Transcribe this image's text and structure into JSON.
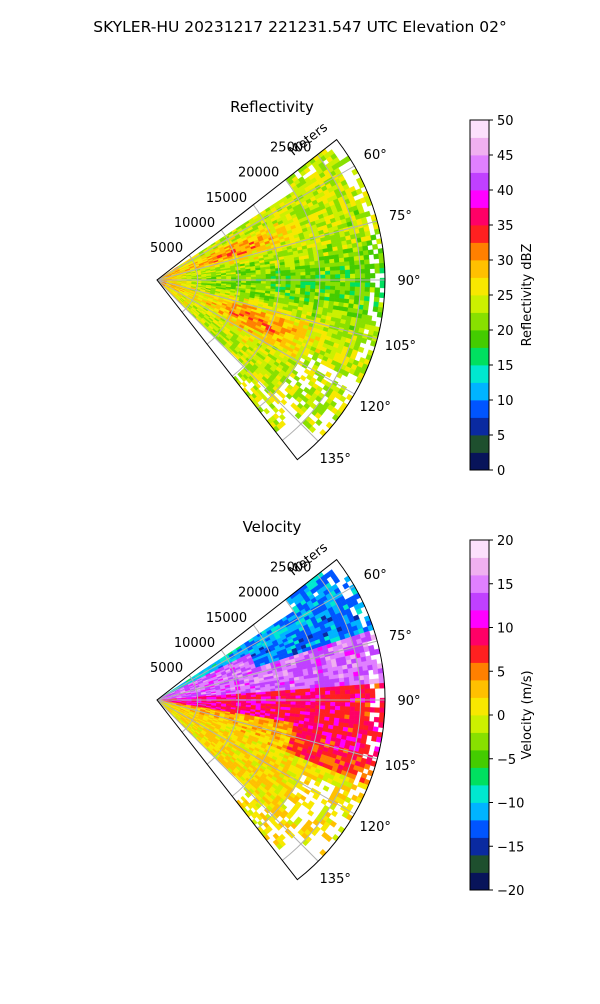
{
  "figure": {
    "suptitle": "SKYLER-HU  20231217  221231.547 UTC Elevation 02°"
  },
  "chart_data": [
    {
      "type": "heatmap",
      "title": "Reflectivity",
      "radial_label": "Meters",
      "radial_ticks": [
        "5000",
        "10000",
        "15000",
        "20000",
        "25000"
      ],
      "radial_tick_values": [
        5000,
        10000,
        15000,
        20000,
        25000
      ],
      "r_max": 28000,
      "angle_range_deg": [
        52,
        142
      ],
      "angle_ticks": [
        "60°",
        "75°",
        "90°",
        "105°",
        "120°",
        "135°"
      ],
      "angle_tick_values": [
        60,
        75,
        90,
        105,
        120,
        135
      ],
      "grid": true,
      "colorbar": {
        "label": "Reflectivity dBZ",
        "range": [
          0,
          50
        ],
        "ticks": [
          "0",
          "5",
          "10",
          "15",
          "20",
          "25",
          "30",
          "35",
          "40",
          "45",
          "50"
        ],
        "tick_values": [
          0,
          5,
          10,
          15,
          20,
          25,
          30,
          35,
          40,
          45,
          50
        ],
        "colors": [
          "#08145a",
          "#1e4f2e",
          "#0a2aa0",
          "#0055ff",
          "#00b4ff",
          "#00e8d0",
          "#00e060",
          "#44cc00",
          "#88e000",
          "#ccf000",
          "#f8e800",
          "#ffc000",
          "#ff8000",
          "#ff2020",
          "#ff0066",
          "#ff00ff",
          "#c040ff",
          "#e080ff",
          "#f0b0f0",
          "#fce0fc"
        ]
      }
    },
    {
      "type": "heatmap",
      "title": "Velocity",
      "radial_label": "Meters",
      "radial_ticks": [
        "5000",
        "10000",
        "15000",
        "20000",
        "25000"
      ],
      "radial_tick_values": [
        5000,
        10000,
        15000,
        20000,
        25000
      ],
      "r_max": 28000,
      "angle_range_deg": [
        52,
        142
      ],
      "angle_ticks": [
        "60°",
        "75°",
        "90°",
        "105°",
        "120°",
        "135°"
      ],
      "angle_tick_values": [
        60,
        75,
        90,
        105,
        120,
        135
      ],
      "grid": true,
      "colorbar": {
        "label": "Velocity (m/s)",
        "range": [
          -20,
          20
        ],
        "ticks": [
          "−20",
          "−15",
          "−10",
          "−5",
          "0",
          "5",
          "10",
          "15",
          "20"
        ],
        "tick_values": [
          -20,
          -15,
          -10,
          -5,
          0,
          5,
          10,
          15,
          20
        ],
        "colors": [
          "#08145a",
          "#1e4f2e",
          "#0a2aa0",
          "#0055ff",
          "#00b4ff",
          "#00e8d0",
          "#00e060",
          "#44cc00",
          "#88e000",
          "#ccf000",
          "#f8e800",
          "#ffc000",
          "#ff8000",
          "#ff2020",
          "#ff0066",
          "#ff00ff",
          "#c040ff",
          "#e080ff",
          "#f0b0f0",
          "#fce0fc"
        ]
      }
    }
  ]
}
